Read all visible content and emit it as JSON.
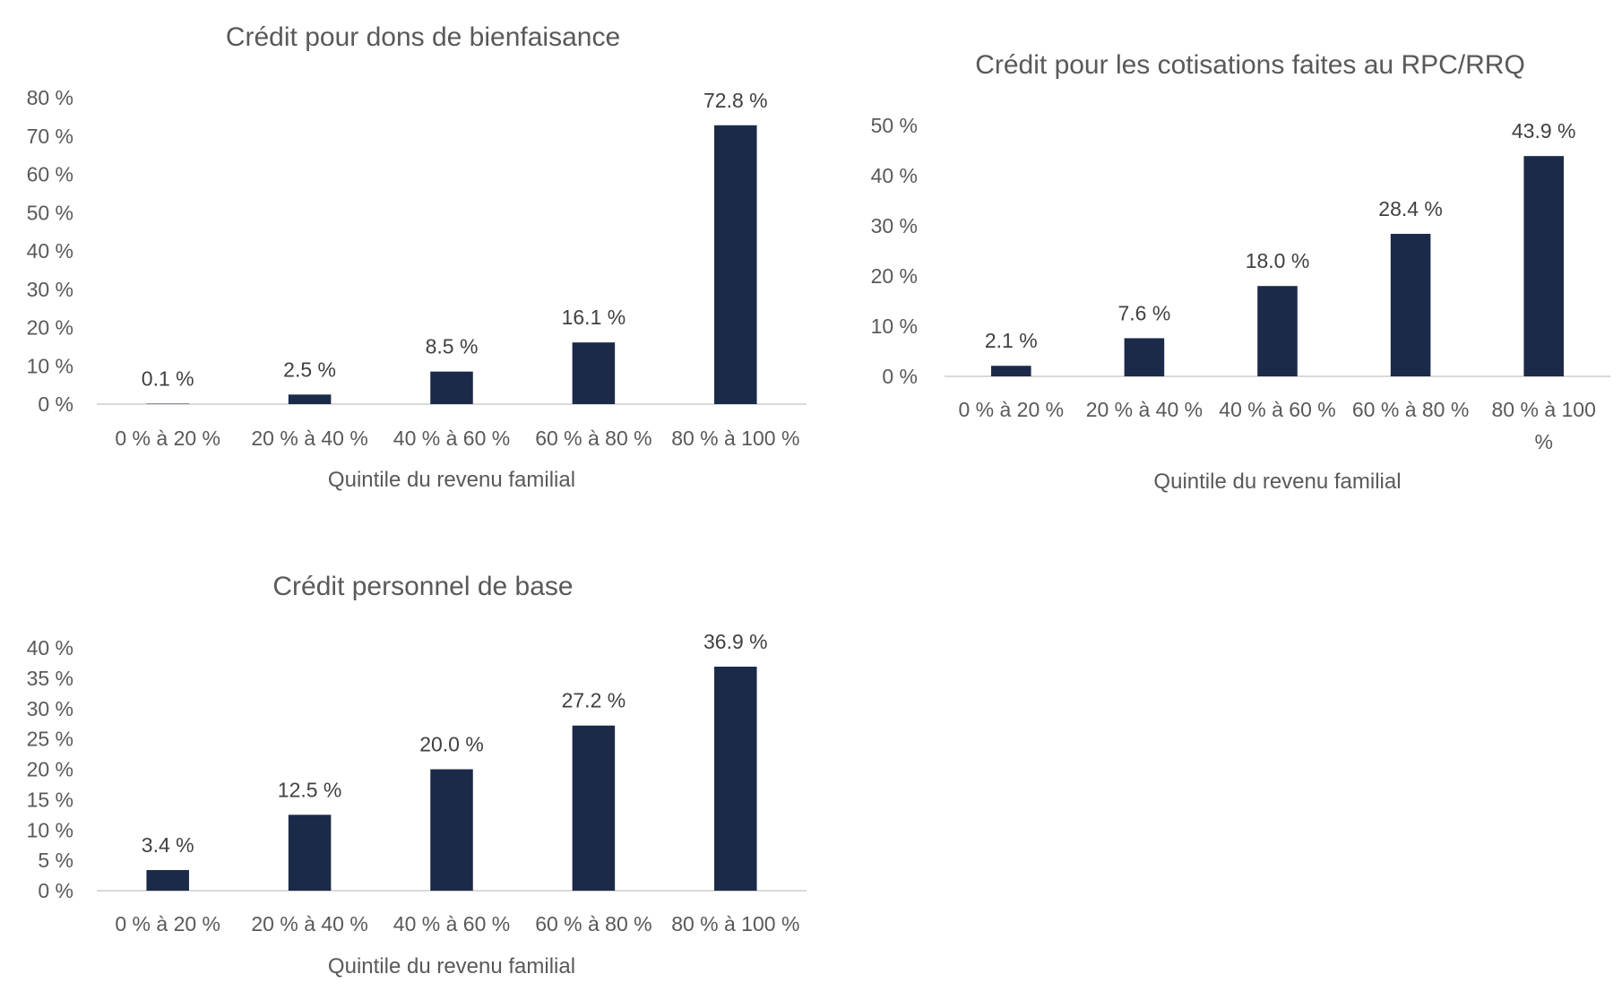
{
  "chart_data": [
    {
      "type": "bar",
      "title": "Crédit pour dons de bienfaisance",
      "xlabel": "Quintile du revenu familial",
      "ylabel": "",
      "categories": [
        "0 % à 20 %",
        "20 % à 40 %",
        "40 % à 60 %",
        "60 % à 80 %",
        "80 % à 100 %"
      ],
      "values": [
        0.1,
        2.5,
        8.5,
        16.1,
        72.8
      ],
      "data_labels": [
        "0.1 %",
        "2.5 %",
        "8.5 %",
        "16.1 %",
        "72.8 %"
      ],
      "ylim": [
        0,
        80
      ],
      "yticks": [
        "0 %",
        "10 %",
        "20 %",
        "30 %",
        "40 %",
        "50 %",
        "60 %",
        "70 %",
        "80 %"
      ],
      "bar_color": "#1c2a4a",
      "grid": false,
      "legend": "none"
    },
    {
      "type": "bar",
      "title": "Crédit pour les cotisations faites au RPC/RRQ",
      "xlabel": "Quintile du revenu familial",
      "ylabel": "",
      "categories": [
        "0 % à 20 %",
        "20 % à 40 %",
        "40 % à 60 %",
        "60 % à 80 %",
        "80 % à 100 %"
      ],
      "values": [
        2.1,
        7.6,
        18.0,
        28.4,
        43.9
      ],
      "data_labels": [
        "2.1 %",
        "7.6 %",
        "18.0 %",
        "28.4 %",
        "43.9 %"
      ],
      "ylim": [
        0,
        50
      ],
      "yticks": [
        "0 %",
        "10 %",
        "20 %",
        "30 %",
        "40 %",
        "50 %"
      ],
      "bar_color": "#1c2a4a",
      "grid": false,
      "legend": "none"
    },
    {
      "type": "bar",
      "title": "Crédit personnel de base",
      "xlabel": "Quintile du revenu familial",
      "ylabel": "",
      "categories": [
        "0 % à 20 %",
        "20 % à 40 %",
        "40 % à 60 %",
        "60 % à 80 %",
        "80 % à 100 %"
      ],
      "values": [
        3.4,
        12.5,
        20.0,
        27.2,
        36.9
      ],
      "data_labels": [
        "3.4 %",
        "12.5 %",
        "20.0 %",
        "27.2 %",
        "36.9 %"
      ],
      "ylim": [
        0,
        40
      ],
      "yticks": [
        "0 %",
        "5 %",
        "10 %",
        "15 %",
        "20 %",
        "25 %",
        "30 %",
        "35 %",
        "40 %"
      ],
      "bar_color": "#1c2a4a",
      "grid": false,
      "legend": "none"
    }
  ]
}
